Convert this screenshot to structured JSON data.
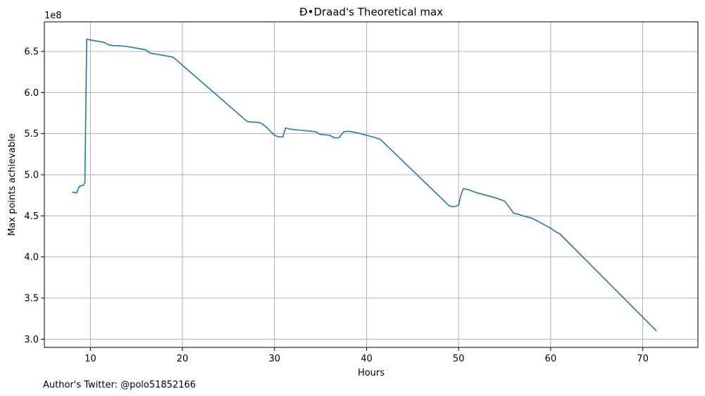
{
  "chart_data": {
    "type": "line",
    "title": "Ð•Draad's Theoretical max",
    "xlabel": "Hours",
    "ylabel": "Max points achievable",
    "y_offset_text": "1e8",
    "footnote": "Author's Twitter: @polo51852166",
    "xlim": [
      5,
      76
    ],
    "ylim": [
      290000000.0,
      686000000.0
    ],
    "grid": true,
    "line_color": "#1f77b4",
    "x_ticks": [
      10,
      20,
      30,
      40,
      50,
      60,
      70
    ],
    "x_tick_labels": [
      "10",
      "20",
      "30",
      "40",
      "50",
      "60",
      "70"
    ],
    "y_ticks": [
      300000000.0,
      350000000.0,
      400000000.0,
      450000000.0,
      500000000.0,
      550000000.0,
      600000000.0,
      650000000.0
    ],
    "y_tick_labels": [
      "3.0",
      "3.5",
      "4.0",
      "4.5",
      "5.0",
      "5.5",
      "6.0",
      "6.5"
    ],
    "series": [
      {
        "x": [
          8.0,
          8.5,
          8.8,
          9.2,
          9.4,
          9.6,
          10.0,
          10.5,
          11.0,
          11.5,
          12.0,
          12.5,
          13.0,
          14.0,
          15.0,
          16.0,
          16.5,
          17.0,
          18.0,
          19.0,
          27.0,
          27.5,
          28.0,
          28.5,
          29.0,
          30.0,
          30.5,
          30.9,
          31.2,
          31.5,
          32.0,
          33.0,
          34.0,
          34.5,
          35.0,
          36.0,
          36.5,
          37.0,
          37.5,
          38.0,
          38.5,
          39.0,
          40.0,
          41.0,
          41.5,
          49.0,
          49.5,
          50.0,
          50.2,
          50.5,
          51.0,
          52.0,
          53.0,
          54.0,
          55.0,
          56.0,
          56.5,
          57.0,
          58.0,
          58.5,
          59.0,
          60.0,
          60.5,
          61.0,
          71.5
        ],
        "y": [
          479000000.0,
          478000000.0,
          486000000.0,
          487000000.0,
          490000000.0,
          665000000.0,
          664000000.0,
          663000000.0,
          662000000.0,
          661000000.0,
          658000000.0,
          657000000.0,
          657000000.0,
          656000000.0,
          654000000.0,
          652000000.0,
          648000000.0,
          647000000.0,
          645000000.0,
          643000000.0,
          565000000.0,
          564000000.0,
          564000000.0,
          563000000.0,
          559000000.0,
          548000000.0,
          546000000.0,
          546000000.0,
          557000000.0,
          556000000.0,
          555000000.0,
          554000000.0,
          553000000.0,
          552000000.0,
          549000000.0,
          548000000.0,
          545000000.0,
          545000000.0,
          552000000.0,
          553000000.0,
          552000000.0,
          551000000.0,
          548000000.0,
          545000000.0,
          543000000.0,
          462000000.0,
          461000000.0,
          463000000.0,
          473000000.0,
          483000000.0,
          482000000.0,
          478000000.0,
          475000000.0,
          472000000.0,
          468000000.0,
          453000000.0,
          452000000.0,
          450000000.0,
          447000000.0,
          444000000.0,
          441000000.0,
          435000000.0,
          431000000.0,
          428000000.0,
          310000000.0
        ]
      }
    ]
  }
}
